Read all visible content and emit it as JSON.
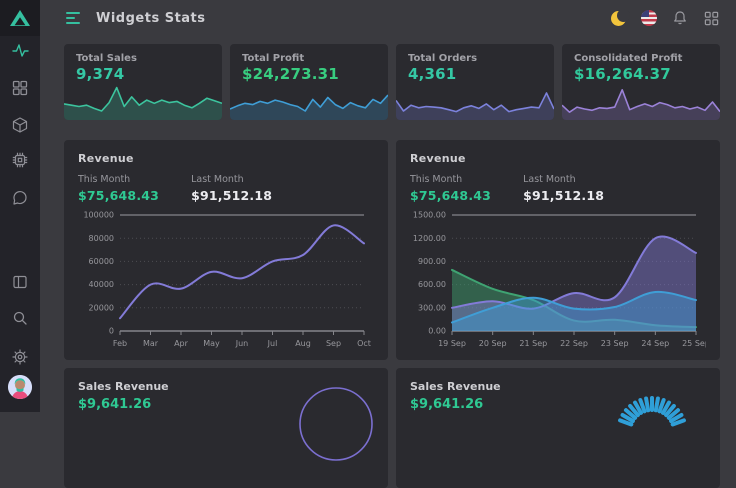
{
  "header": {
    "title": "Widgets Stats",
    "icons": [
      "menu-icon",
      "moon-icon",
      "us-flag-icon",
      "bell-icon",
      "apps-grid-icon"
    ]
  },
  "sidebar": {
    "items": [
      {
        "name": "activity",
        "active": true
      },
      {
        "name": "dashboard-grid",
        "active": false
      },
      {
        "name": "package-box",
        "active": false
      },
      {
        "name": "chip",
        "active": false
      },
      {
        "name": "chat",
        "active": false
      },
      {
        "name": "layout-panel",
        "active": false
      },
      {
        "name": "search",
        "active": false
      },
      {
        "name": "settings-gear",
        "active": false
      },
      {
        "name": "user-avatar",
        "active": false
      }
    ]
  },
  "colors": {
    "accent_teal": "#35c0a0",
    "money_green": "#2fc993",
    "chart_purple": "#837bd8",
    "chart_blue": "#3f9ed6",
    "chart_green": "#3fa372",
    "spark_teal": "#3cc49e",
    "spark_blue": "#3f9ed6",
    "spark_indigo": "#7c82dc",
    "spark_violet": "#9b82d8"
  },
  "stat_cards": [
    {
      "label": "Total Sales",
      "value": "9,374",
      "value_color": "#35c8a5",
      "line_color": "#3cc49e",
      "spark": [
        44,
        40,
        36,
        40,
        30,
        22,
        48,
        95,
        36,
        66,
        40,
        56,
        46,
        56,
        48,
        52,
        40,
        32,
        46,
        62,
        54,
        46
      ]
    },
    {
      "label": "Total Profit",
      "value": "$24,273.31",
      "value_color": "#38cd80",
      "line_color": "#3f9ed6",
      "spark": [
        28,
        38,
        46,
        42,
        52,
        46,
        56,
        50,
        42,
        36,
        22,
        58,
        34,
        64,
        42,
        30,
        48,
        38,
        32,
        58,
        46,
        72
      ]
    },
    {
      "label": "Total Orders",
      "value": "4,361",
      "value_color": "#35c8a5",
      "line_color": "#7c82dc",
      "spark": [
        55,
        22,
        40,
        32,
        36,
        34,
        32,
        26,
        20,
        32,
        38,
        30,
        44,
        26,
        40,
        20,
        26,
        30,
        34,
        32,
        78,
        28
      ]
    },
    {
      "label": "Consolidated Profit",
      "value": "$16,264.37",
      "value_color": "#31c99b",
      "line_color": "#9b82d8",
      "spark": [
        40,
        18,
        34,
        28,
        24,
        32,
        30,
        34,
        88,
        26,
        36,
        44,
        36,
        48,
        42,
        32,
        36,
        28,
        34,
        24,
        50,
        20
      ]
    }
  ],
  "revenue_left": {
    "title": "Revenue",
    "this_month_label": "This Month",
    "this_month_value": "$75,648.43",
    "last_month_label": "Last Month",
    "last_month_value": "$91,512.18",
    "chart_data": {
      "type": "line",
      "x": [
        "Feb",
        "Mar",
        "Apr",
        "May",
        "Jun",
        "Jul",
        "Aug",
        "Sep",
        "Oct"
      ],
      "series": [
        {
          "name": "revenue",
          "color": "#837bd8",
          "values": [
            11000,
            40000,
            36500,
            51000,
            45500,
            60000,
            65500,
            91000,
            75500
          ]
        }
      ],
      "ylim": [
        0,
        100000
      ],
      "yticks": [
        {
          "v": 0,
          "label": "0"
        },
        {
          "v": 20000,
          "label": "20000"
        },
        {
          "v": 40000,
          "label": "40000"
        },
        {
          "v": 60000,
          "label": "60000"
        },
        {
          "v": 80000,
          "label": "80000"
        },
        {
          "v": 100000,
          "label": "100000"
        }
      ],
      "grid": "dotted-horizontal",
      "legend": "none"
    }
  },
  "revenue_right": {
    "title": "Revenue",
    "this_month_label": "This Month",
    "this_month_value": "$75,648.43",
    "last_month_label": "Last Month",
    "last_month_value": "$91,512.18",
    "chart_data": {
      "type": "area",
      "x": [
        "19 Sep",
        "20 Sep",
        "21 Sep",
        "22 Sep",
        "23 Sep",
        "24 Sep",
        "25 Sep"
      ],
      "series": [
        {
          "name": "series-green",
          "color": "#3fa372",
          "values": [
            790,
            545,
            400,
            135,
            145,
            75,
            50
          ]
        },
        {
          "name": "series-purple",
          "color": "#837bd8",
          "values": [
            300,
            385,
            290,
            490,
            435,
            1200,
            1010
          ]
        },
        {
          "name": "series-blue",
          "color": "#3f9ed6",
          "values": [
            110,
            300,
            430,
            290,
            310,
            505,
            400
          ]
        }
      ],
      "ylim": [
        0,
        1500
      ],
      "yticks": [
        {
          "v": 0,
          "label": "0.00"
        },
        {
          "v": 300,
          "label": "300.00"
        },
        {
          "v": 600,
          "label": "600.00"
        },
        {
          "v": 900,
          "label": "900.00"
        },
        {
          "v": 1200,
          "label": "1200.00"
        },
        {
          "v": 1500,
          "label": "1500.00"
        }
      ],
      "grid": "dotted-horizontal",
      "legend": "none"
    }
  },
  "bottom_cards": [
    {
      "title": "Sales Revenue",
      "value": "$9,641.26",
      "gauge": "purple-arc",
      "gauge_color": "#7b6fd0"
    },
    {
      "title": "Sales Revenue",
      "value": "$9,641.26",
      "gauge": "blue-ticks",
      "gauge_color": "#2f9fd8"
    }
  ]
}
